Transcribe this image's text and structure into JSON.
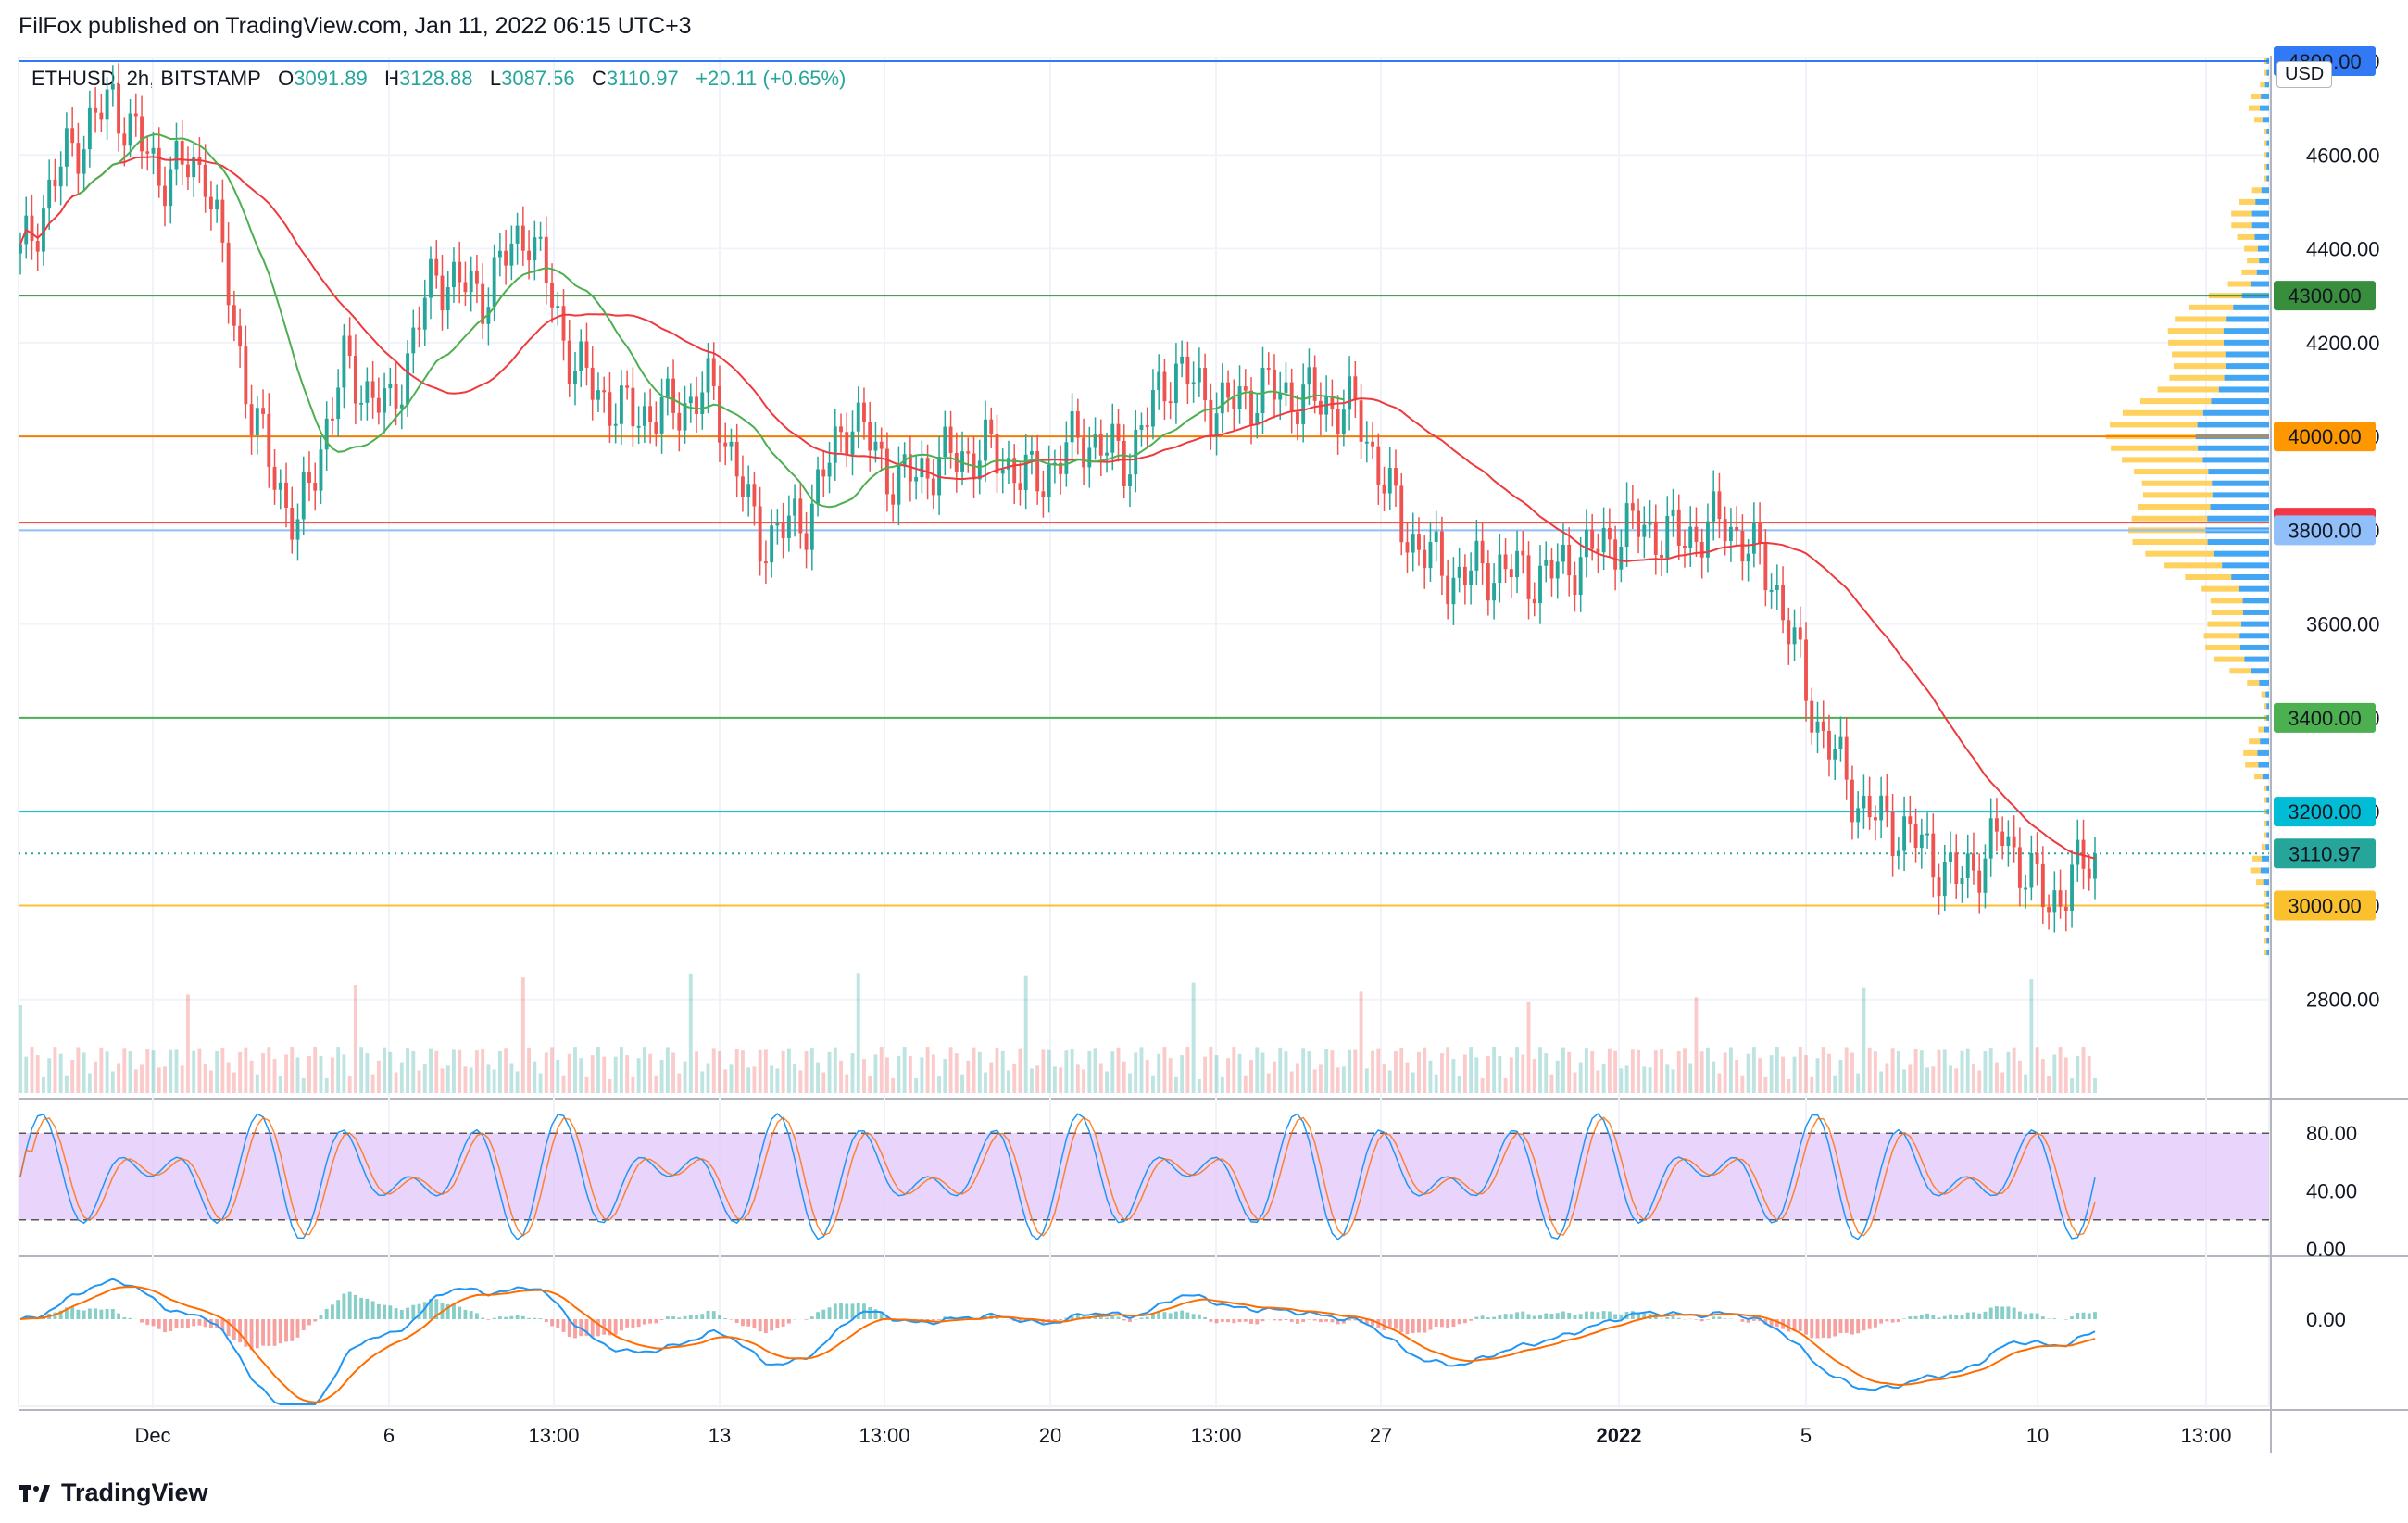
{
  "header": {
    "published": "FilFox published on TradingView.com, Jan 11, 2022 06:15 UTC+3"
  },
  "legend": {
    "symbol": "ETHUSD, 2h, BITSTAMP",
    "o_label": "O",
    "o_value": "3091.89",
    "h_label": "H",
    "h_value": "3128.88",
    "l_label": "L",
    "l_value": "3087.56",
    "c_label": "C",
    "c_value": "3110.97",
    "change": "+20.11 (+0.65%)"
  },
  "currency": "USD",
  "footer": {
    "brand": "TradingView"
  },
  "colors": {
    "up": "#26a69a",
    "down": "#ef5350",
    "ma_red": "#f0393d",
    "ma_green": "#4caf50",
    "stoch_bg": "#e1c5fb",
    "macd_blue": "#2196f3",
    "macd_orange": "#ff6d00",
    "vp_blue": "#2196f3",
    "vp_yellow": "#ffcc4d"
  },
  "chart_data": [
    {
      "type": "candlestick",
      "symbol": "ETHUSD",
      "interval": "2h",
      "ylim": [
        2600,
        4800
      ],
      "y_ticks": [
        "4800.00",
        "4600.00",
        "4400.00",
        "4200.00",
        "4000.00",
        "3800.00",
        "3600.00",
        "3400.00",
        "3200.00",
        "3000.00",
        "2800.00"
      ],
      "x_ticks": [
        "Dec",
        "6",
        "13:00",
        "13",
        "13:00",
        "20",
        "13:00",
        "27",
        "2022",
        "5",
        "10",
        "13:00"
      ],
      "close_path": [
        [
          "Nov 29",
          4380
        ],
        [
          "Nov 30",
          4600
        ],
        [
          "Dec 1",
          4720
        ],
        [
          "Dec 2",
          4560
        ],
        [
          "Dec 3",
          4580
        ],
        [
          "Dec 4",
          4050
        ],
        [
          "Dec 4b",
          3800
        ],
        [
          "Dec 5",
          4150
        ],
        [
          "Dec 6",
          4050
        ],
        [
          "Dec 7",
          4350
        ],
        [
          "Dec 8",
          4300
        ],
        [
          "Dec 9",
          4450
        ],
        [
          "Dec 10",
          4150
        ],
        [
          "Dec 11",
          4050
        ],
        [
          "Dec 12",
          4050
        ],
        [
          "Dec 13",
          4100
        ],
        [
          "Dec 14",
          3780
        ],
        [
          "Dec 15",
          3820
        ],
        [
          "Dec 16",
          4050
        ],
        [
          "Dec 17",
          3900
        ],
        [
          "Dec 18",
          3950
        ],
        [
          "Dec 19",
          3970
        ],
        [
          "Dec 20",
          3900
        ],
        [
          "Dec 21",
          4000
        ],
        [
          "Dec 22",
          3950
        ],
        [
          "Dec 23",
          4150
        ],
        [
          "Dec 24",
          4060
        ],
        [
          "Dec 25",
          4100
        ],
        [
          "Dec 26",
          4080
        ],
        [
          "Dec 27",
          4050
        ],
        [
          "Dec 28",
          3800
        ],
        [
          "Dec 29",
          3700
        ],
        [
          "Dec 30",
          3720
        ],
        [
          "Dec 31",
          3700
        ],
        [
          "Jan 1",
          3750
        ],
        [
          "Jan 2",
          3810
        ],
        [
          "Jan 3",
          3780
        ],
        [
          "Jan 4",
          3820
        ],
        [
          "Jan 5",
          3700
        ],
        [
          "Jan 6",
          3380
        ],
        [
          "Jan 7",
          3200
        ],
        [
          "Jan 8",
          3150
        ],
        [
          "Jan 9",
          3050
        ],
        [
          "Jan 10",
          3150
        ],
        [
          "Jan 10b",
          3000
        ],
        [
          "Jan 11",
          3110.97
        ]
      ],
      "horizontal_levels": [
        {
          "price": 4800,
          "color": "#3179f5"
        },
        {
          "price": 4300,
          "color": "#388e3c"
        },
        {
          "price": 4000,
          "color": "#f57c00"
        },
        {
          "price": 3816.29,
          "color": "#ef5350"
        },
        {
          "price": 3800,
          "color": "#90bff9"
        },
        {
          "price": 3400,
          "color": "#4caf50"
        },
        {
          "price": 3200,
          "color": "#00bcd4"
        },
        {
          "price": 3000,
          "color": "#fbc02d"
        }
      ],
      "price_labels": [
        {
          "text": "4800.00",
          "price": 4800,
          "bg": "#3179f5",
          "fg": "#ffffff"
        },
        {
          "text": "4300.00",
          "price": 4300,
          "bg": "#388e3c",
          "fg": "#ffffff"
        },
        {
          "text": "4000.00",
          "price": 4000,
          "bg": "#ff9800",
          "fg": "#131722"
        },
        {
          "text": "3816.29",
          "price": 3816.29,
          "bg": "#f23645",
          "fg": "#ffffff"
        },
        {
          "text": "3800.00",
          "price": 3800,
          "bg": "#90bff9",
          "fg": "#131722"
        },
        {
          "text": "3400.00",
          "price": 3400,
          "bg": "#4caf50",
          "fg": "#ffffff"
        },
        {
          "text": "3200.00",
          "price": 3200,
          "bg": "#00bcd4",
          "fg": "#131722"
        },
        {
          "text": "3110.97",
          "price": 3110.97,
          "bg": "#26a69a",
          "fg": "#ffffff"
        },
        {
          "text": "3000.00",
          "price": 3000,
          "bg": "#fbc02d",
          "fg": "#131722"
        }
      ]
    },
    {
      "type": "line",
      "panel": "stochastic",
      "ylim": [
        0,
        100
      ],
      "y_ticks": [
        "80.00",
        "40.00",
        "0.00"
      ],
      "band": [
        20,
        80
      ]
    },
    {
      "type": "line",
      "panel": "macd",
      "y_ticks": [
        "0.00"
      ]
    }
  ]
}
